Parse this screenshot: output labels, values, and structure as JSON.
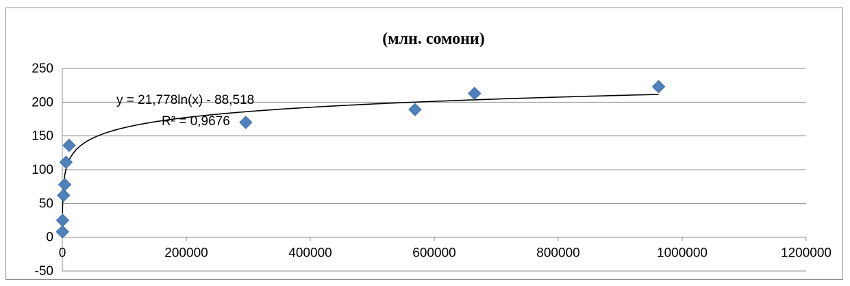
{
  "chart_data": {
    "type": "scatter",
    "title": "(млн. сомони)",
    "xlabel": "",
    "ylabel": "",
    "xlim": [
      0,
      1200000
    ],
    "ylim": [
      -50,
      250
    ],
    "x_ticks": [
      0,
      200000,
      400000,
      600000,
      800000,
      1000000,
      1200000
    ],
    "y_ticks": [
      -50,
      0,
      50,
      100,
      150,
      200,
      250
    ],
    "grid": "horizontal",
    "marker": "diamond",
    "marker_color": "#4f81bd",
    "trendline_color": "#000000",
    "series": [
      {
        "points": [
          {
            "x": 300,
            "y": 8
          },
          {
            "x": 500,
            "y": 25
          },
          {
            "x": 2000,
            "y": 62
          },
          {
            "x": 4000,
            "y": 78
          },
          {
            "x": 6000,
            "y": 111
          },
          {
            "x": 11000,
            "y": 136
          },
          {
            "x": 296000,
            "y": 170
          },
          {
            "x": 569000,
            "y": 189
          },
          {
            "x": 665000,
            "y": 213
          },
          {
            "x": 962000,
            "y": 223
          }
        ]
      }
    ],
    "trendline": {
      "type": "logarithmic",
      "a": 21.778,
      "b": -88.518,
      "x_from": 300,
      "x_to": 962000,
      "equation": "y = 21,778ln(x) - 88,518",
      "r_squared": "R² = 0,9676"
    }
  }
}
